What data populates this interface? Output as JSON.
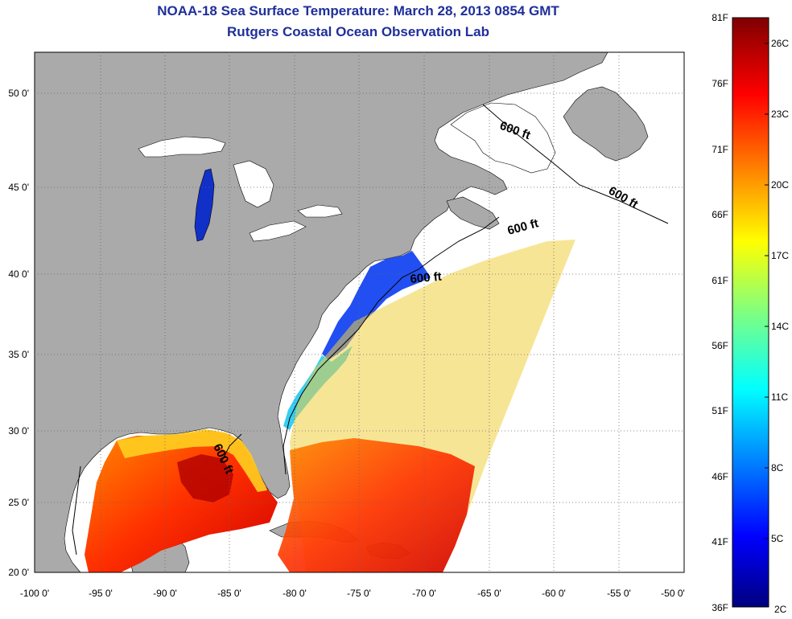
{
  "title": {
    "line1": "NOAA-18 Sea Surface Temperature:  March 28, 2013 0854 GMT",
    "line2": "Rutgers Coastal Ocean Observation Lab"
  },
  "map": {
    "x_ticks": [
      "-100 0'",
      "-95 0'",
      "-90 0'",
      "-85 0'",
      "-80 0'",
      "-75 0'",
      "-70 0'",
      "-65 0'",
      "-60 0'",
      "-55 0'",
      "-50 0'"
    ],
    "y_ticks": [
      "50 0'",
      "45 0'",
      "40 0'",
      "35 0'",
      "30 0'",
      "25 0'",
      "20 0'"
    ],
    "contour_labels": [
      "600 ft",
      "600 ft",
      "600 ft",
      "600 ft",
      "600 ft"
    ],
    "colors": {
      "land": "#aaaaaa",
      "ocean": "#ffffff",
      "frame": "#000000"
    }
  },
  "colorbar": {
    "fahrenheit_labels": [
      "81F",
      "76F",
      "71F",
      "66F",
      "61F",
      "56F",
      "51F",
      "46F",
      "41F",
      "36F"
    ],
    "celsius_labels": [
      "26C",
      "23C",
      "20C",
      "17C",
      "14C",
      "11C",
      "8C",
      "5C",
      "2C"
    ],
    "colormap": "jet"
  }
}
